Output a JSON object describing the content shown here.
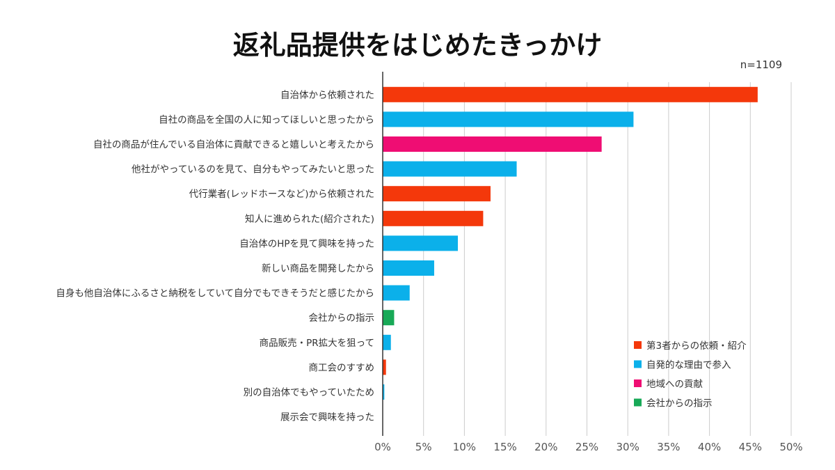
{
  "chart_data": {
    "type": "bar",
    "orientation": "horizontal",
    "title": "返礼品提供をはじめたきっかけ",
    "note": "n=1109",
    "categories": [
      "自治体から依頼された",
      "自社の商品を全国の人に知ってほしいと思ったから",
      "自社の商品が住んでいる自治体に貢献できると嬉しいと考えたから",
      "他社がやっているのを見て、自分もやってみたいと思った",
      "代行業者(レッドホースなど)から依頼された",
      "知人に進められた(紹介された)",
      "自治体のHPを見て興味を持った",
      "新しい商品を開発したから",
      "自身も他自治体にふるさと納税をしていて自分でもできそうだと感じたから",
      "会社からの指示",
      "商品販売・PR拡大を狙って",
      "商工会のすすめ",
      "別の自治体でもやっていたため",
      "展示会で興味を持った"
    ],
    "values": [
      45.9,
      30.7,
      26.8,
      16.4,
      13.2,
      12.3,
      9.2,
      6.3,
      3.3,
      1.4,
      1.0,
      0.4,
      0.2,
      0.0
    ],
    "groups": [
      0,
      1,
      2,
      1,
      0,
      0,
      1,
      1,
      1,
      3,
      1,
      0,
      1,
      1
    ],
    "legend": [
      {
        "name": "第3者からの依頼・紹介",
        "color": "#f4380b"
      },
      {
        "name": "自発的な理由で参入",
        "color": "#0bb0ea"
      },
      {
        "name": "地域への貢献",
        "color": "#ef0d73"
      },
      {
        "name": "会社からの指示",
        "color": "#18a957"
      }
    ],
    "legend_position": "bottom-right",
    "xlim": [
      0,
      50
    ],
    "xticks": [
      "0%",
      "5%",
      "10%",
      "15%",
      "20%",
      "25%",
      "30%",
      "35%",
      "40%",
      "45%",
      "50%"
    ],
    "grid": "vertical"
  }
}
